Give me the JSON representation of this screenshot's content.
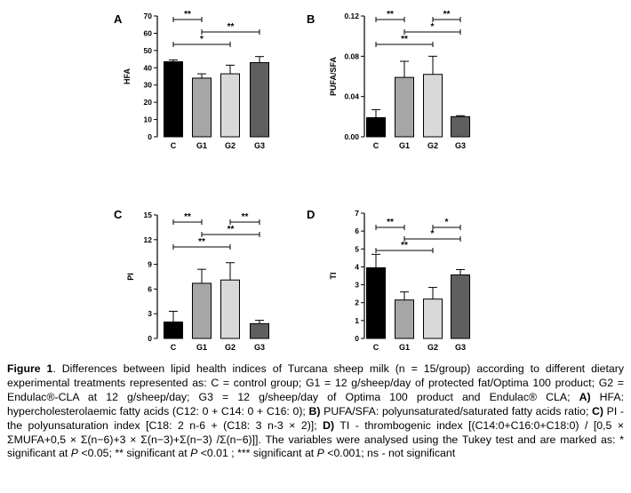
{
  "figure": {
    "panels": [
      {
        "id": "A",
        "letter": "A",
        "ylabel": "HFA",
        "yticks": [
          "0",
          "10",
          "20",
          "30",
          "40",
          "50",
          "60",
          "70"
        ],
        "ymax": 70,
        "categories": [
          "C",
          "G1",
          "G2",
          "G3"
        ],
        "values": [
          43.5,
          34,
          36.5,
          43
        ],
        "errors": [
          1,
          2.5,
          5,
          3.5
        ],
        "sig": [
          {
            "from": 0,
            "to": 1,
            "label": "**"
          },
          {
            "from": 0,
            "to": 2,
            "label": "*"
          },
          {
            "from": 1,
            "to": 3,
            "label": "**"
          }
        ]
      },
      {
        "id": "B",
        "letter": "B",
        "ylabel": "PUFA/SFA",
        "yticks": [
          "0.00",
          "0.04",
          "0.08",
          "0.12"
        ],
        "ymax": 0.12,
        "categories": [
          "C",
          "G1",
          "G2",
          "G3"
        ],
        "values": [
          0.019,
          0.059,
          0.062,
          0.02
        ],
        "errors": [
          0.008,
          0.016,
          0.018,
          0.001
        ],
        "sig": [
          {
            "from": 0,
            "to": 1,
            "label": "**"
          },
          {
            "from": 0,
            "to": 2,
            "label": "**"
          },
          {
            "from": 2,
            "to": 3,
            "label": "**"
          },
          {
            "from": 1,
            "to": 3,
            "label": "*"
          }
        ]
      },
      {
        "id": "C",
        "letter": "C",
        "ylabel": "PI",
        "yticks": [
          "0",
          "3",
          "6",
          "9",
          "12",
          "15"
        ],
        "ymax": 15,
        "categories": [
          "C",
          "G1",
          "G2",
          "G3"
        ],
        "values": [
          2,
          6.7,
          7.1,
          1.8
        ],
        "errors": [
          1.3,
          1.7,
          2.1,
          0.4
        ],
        "sig": [
          {
            "from": 0,
            "to": 1,
            "label": "**"
          },
          {
            "from": 0,
            "to": 2,
            "label": "**"
          },
          {
            "from": 2,
            "to": 3,
            "label": "**"
          },
          {
            "from": 1,
            "to": 3,
            "label": "**"
          }
        ]
      },
      {
        "id": "D",
        "letter": "D",
        "ylabel": "TI",
        "yticks": [
          "0",
          "1",
          "2",
          "3",
          "4",
          "5",
          "6",
          "7"
        ],
        "ymax": 7,
        "categories": [
          "C",
          "G1",
          "G2",
          "G3"
        ],
        "values": [
          3.95,
          2.15,
          2.2,
          3.55
        ],
        "errors": [
          0.75,
          0.45,
          0.65,
          0.3
        ],
        "sig": [
          {
            "from": 0,
            "to": 1,
            "label": "**"
          },
          {
            "from": 0,
            "to": 2,
            "label": "**"
          },
          {
            "from": 2,
            "to": 3,
            "label": "*"
          },
          {
            "from": 1,
            "to": 3,
            "label": "*"
          }
        ]
      }
    ]
  },
  "caption": {
    "label": "Figure 1",
    "s1": ". Differences between lipid health indices of Turcana sheep milk (n = 15/group) according to different dietary experimental treatments represented as: C = control group; G1 = 12 g/sheep/day of protected fat/Optima 100 product; G2 = Endulac®-CLA at 12 g/sheep/day; G3 = 12 g/sheep/day of Optima 100 product and Endulac® CLA; ",
    "a": "A)",
    "s2": " HFA: hypercholesterolaemic fatty acids (C12: 0 + C14: 0 + C16: 0); ",
    "b": "B)",
    "s3": " PUFA/SFA: polyunsaturated/saturated fatty acids ratio; ",
    "c": "C)",
    "s4": " PI - the polyunsaturation index [C18: 2 n-6 + (C18: 3 n-3 × 2)]; ",
    "d": "D)",
    "s5": " TI - thrombogenic index [(C14:0+C16:0+C18:0) / [0,5 × ΣMUFA+0,5 × Σ(n−6)+3 × Σ(n−3)+Σ(n−3) /Σ(n−6)]]. The variables were analysed using the Tukey test and are marked as: * significant at ",
    "p1": "P",
    "s6": " <0.05; ** significant at ",
    "p2": "P",
    "s7": " <0.01 ; *** significant at ",
    "p3": "P",
    "s8": " <0.001; ns - not significant"
  },
  "colors": {
    "bars": [
      "#000000",
      "#a6a6a6",
      "#d9d9d9",
      "#5f5f5f"
    ],
    "axis": "#000000",
    "bar_outline": "#000000"
  }
}
